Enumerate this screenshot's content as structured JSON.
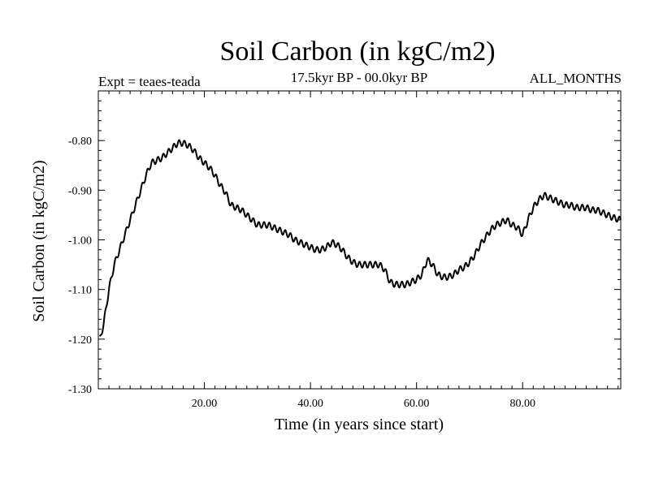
{
  "chart_data": {
    "type": "line",
    "title": "Soil Carbon (in kgC/m2)",
    "subtitle": "17.5kyr BP - 00.0kyr BP",
    "experiment_label": "Expt = teaes-teada",
    "months_label": "ALL_MONTHS",
    "xlabel": "Time (in years since start)",
    "ylabel": "Soil Carbon (in kgC/m2)",
    "xlim": [
      0,
      98.5
    ],
    "ylim": [
      -1.3,
      -0.7
    ],
    "xticks": [
      20,
      40,
      60,
      80
    ],
    "xtick_labels": [
      "20.00",
      "40.00",
      "60.00",
      "80.00"
    ],
    "yticks": [
      -0.8,
      -0.9,
      -1.0,
      -1.1,
      -1.2,
      -1.3
    ],
    "ytick_labels": [
      "-0.80",
      "-0.90",
      "-1.00",
      "-1.10",
      "-1.20",
      "-1.30"
    ],
    "series": [
      {
        "name": "Soil Carbon",
        "color": "#000000",
        "x": [
          0.3,
          1,
          2,
          3,
          4,
          5,
          6,
          7,
          8,
          9,
          10,
          11,
          12,
          13,
          14,
          15,
          16,
          17,
          18,
          19,
          20,
          21,
          22,
          23,
          24,
          25,
          26,
          27,
          28,
          29,
          30,
          31,
          32,
          33,
          34,
          35,
          36,
          37,
          38,
          39,
          40,
          41,
          42,
          43,
          44,
          45,
          46,
          47,
          48,
          49,
          50,
          51,
          52,
          53,
          54,
          55,
          56,
          57,
          58,
          59,
          60,
          61,
          62,
          63,
          64,
          65,
          66,
          67,
          68,
          69,
          70,
          71,
          72,
          73,
          74,
          75,
          76,
          77,
          78,
          79,
          80,
          81,
          82,
          83,
          84,
          85,
          86,
          87,
          88,
          89,
          90,
          91,
          92,
          93,
          94,
          95,
          96,
          97,
          98.5
        ],
        "values": [
          -1.2,
          -1.17,
          -1.1,
          -1.05,
          -1.02,
          -0.99,
          -0.96,
          -0.93,
          -0.9,
          -0.87,
          -0.845,
          -0.84,
          -0.835,
          -0.825,
          -0.815,
          -0.805,
          -0.805,
          -0.81,
          -0.82,
          -0.835,
          -0.845,
          -0.855,
          -0.87,
          -0.89,
          -0.905,
          -0.93,
          -0.935,
          -0.94,
          -0.95,
          -0.96,
          -0.97,
          -0.97,
          -0.97,
          -0.975,
          -0.98,
          -0.985,
          -0.99,
          -1.0,
          -1.005,
          -1.01,
          -1.015,
          -1.02,
          -1.02,
          -1.015,
          -1.005,
          -1.01,
          -1.02,
          -1.035,
          -1.045,
          -1.05,
          -1.05,
          -1.05,
          -1.05,
          -1.05,
          -1.06,
          -1.085,
          -1.09,
          -1.09,
          -1.09,
          -1.085,
          -1.08,
          -1.07,
          -1.04,
          -1.05,
          -1.07,
          -1.075,
          -1.075,
          -1.07,
          -1.06,
          -1.055,
          -1.045,
          -1.03,
          -1.01,
          -0.995,
          -0.98,
          -0.97,
          -0.965,
          -0.96,
          -0.97,
          -0.975,
          -0.99,
          -0.96,
          -0.935,
          -0.92,
          -0.91,
          -0.915,
          -0.92,
          -0.925,
          -0.93,
          -0.93,
          -0.935,
          -0.935,
          -0.935,
          -0.94,
          -0.94,
          -0.945,
          -0.95,
          -0.955,
          -0.96
        ]
      }
    ]
  }
}
